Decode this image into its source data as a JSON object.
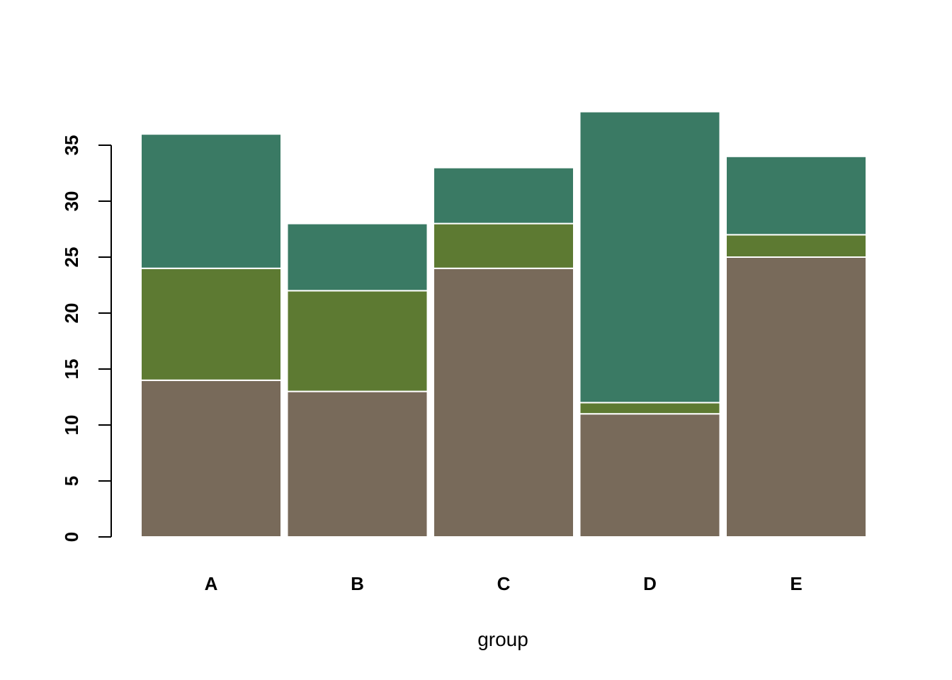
{
  "chart_data": {
    "type": "bar",
    "stacked": true,
    "categories": [
      "A",
      "B",
      "C",
      "D",
      "E"
    ],
    "series": [
      {
        "values": [
          14,
          13,
          24,
          11,
          25
        ],
        "color": "#786A5A"
      },
      {
        "values": [
          10,
          9,
          4,
          1,
          2
        ],
        "color": "#5D7A32"
      },
      {
        "values": [
          12,
          6,
          5,
          26,
          7
        ],
        "color": "#3A7A64"
      }
    ],
    "title": "",
    "xlabel": "group",
    "ylabel": "",
    "ylim": [
      0,
      38
    ],
    "yticks": [
      0,
      5,
      10,
      15,
      20,
      25,
      30,
      35
    ],
    "ytick_labels": [
      "0",
      "5",
      "10",
      "15",
      "20",
      "25",
      "30",
      "35"
    ],
    "bar_border_color": "#FFFFFF",
    "grid": false,
    "legend": "none"
  }
}
